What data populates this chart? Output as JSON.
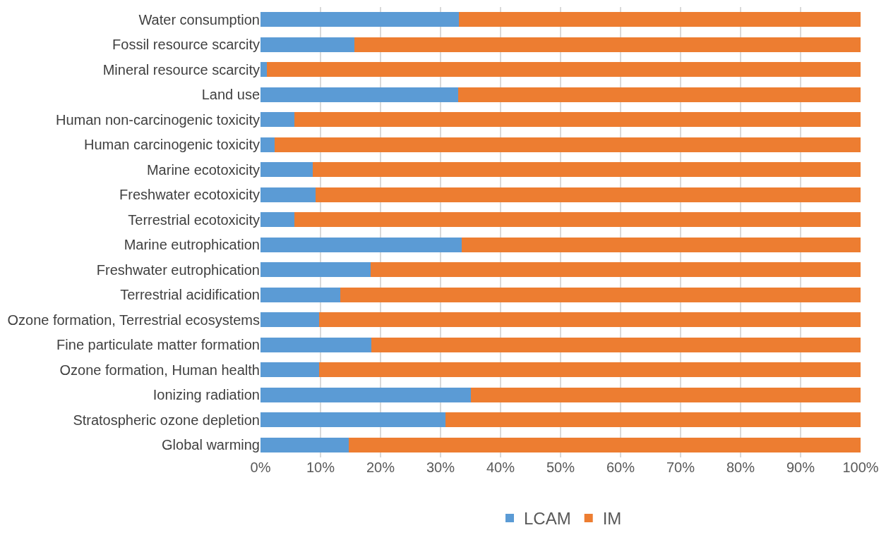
{
  "chart_data": {
    "type": "bar",
    "orientation": "horizontal",
    "stacked": true,
    "categories": [
      "Water consumption",
      "Fossil resource scarcity",
      "Mineral resource scarcity",
      "Land use",
      "Human non-carcinogenic toxicity",
      "Human carcinogenic toxicity",
      "Marine ecotoxicity",
      "Freshwater ecotoxicity",
      "Terrestrial ecotoxicity",
      "Marine eutrophication",
      "Freshwater eutrophication",
      "Terrestrial acidification",
      "Ozone formation, Terrestrial ecosystems",
      "Fine particulate matter formation",
      "Ozone formation, Human health",
      "Ionizing radiation",
      "Stratospheric ozone depletion",
      "Global warming"
    ],
    "series": [
      {
        "name": "LCAM",
        "color": "#5b9bd5",
        "values": [
          33.1,
          15.6,
          1.0,
          32.9,
          5.6,
          2.3,
          8.7,
          9.2,
          5.7,
          33.5,
          18.3,
          13.3,
          9.8,
          18.5,
          9.8,
          35.1,
          30.8,
          14.7
        ]
      },
      {
        "name": "IM",
        "color": "#ed7d31",
        "values": [
          66.9,
          84.4,
          99.0,
          67.1,
          94.4,
          97.7,
          91.3,
          90.8,
          94.3,
          66.5,
          81.7,
          86.7,
          90.2,
          81.5,
          90.2,
          64.9,
          69.2,
          85.3
        ]
      }
    ],
    "xlim": [
      0,
      100
    ],
    "xticks": [
      {
        "value": 0,
        "label": "0%"
      },
      {
        "value": 10,
        "label": "10%"
      },
      {
        "value": 20,
        "label": "20%"
      },
      {
        "value": 30,
        "label": "30%"
      },
      {
        "value": 40,
        "label": "40%"
      },
      {
        "value": 50,
        "label": "50%"
      },
      {
        "value": 60,
        "label": "60%"
      },
      {
        "value": 70,
        "label": "70%"
      },
      {
        "value": 80,
        "label": "80%"
      },
      {
        "value": 90,
        "label": "90%"
      },
      {
        "value": 100,
        "label": "100%"
      }
    ],
    "grid": "x",
    "legend": "bottom"
  }
}
